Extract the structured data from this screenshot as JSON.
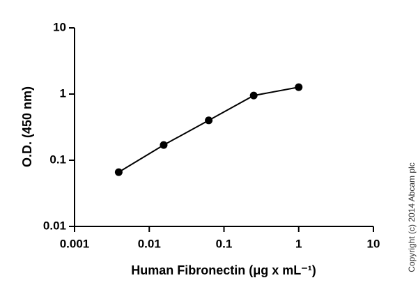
{
  "chart_data": {
    "type": "line",
    "x_label": "Human Fibronectin (μg x mL⁻¹)",
    "y_label": "O.D. (450 nm)",
    "x": [
      0.0039,
      0.0156,
      0.0625,
      0.25,
      1
    ],
    "series": [
      {
        "name": null,
        "color": "#000000",
        "values": [
          0.066,
          0.17,
          0.4,
          0.95,
          1.27
        ]
      }
    ],
    "xlim": [
      0.001,
      10
    ],
    "ylim": [
      0.01,
      10
    ],
    "xticks": [
      0.001,
      0.01,
      0.1,
      1,
      10
    ],
    "yticks": [
      0.01,
      0.1,
      1,
      10
    ],
    "xlog": true,
    "ylog": true,
    "grid": false,
    "copyright": "Copyright (c) 2014 Abcam plc"
  }
}
